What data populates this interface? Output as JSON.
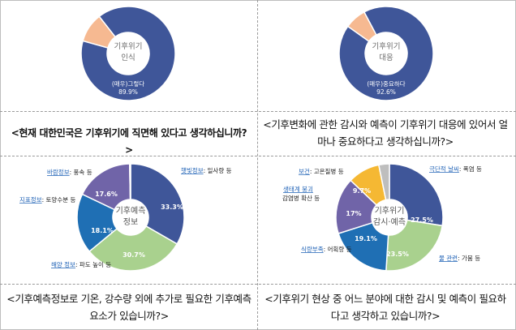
{
  "colors": {
    "blue": "#3F5699",
    "peach": "#F6B991",
    "green": "#A9D18E",
    "teal": "#1F6FB4",
    "purple": "#7064A8",
    "gray": "#BEBEBE",
    "yellow": "#F5B833",
    "red": "#E11B1B",
    "label_blue": "#1F62B6"
  },
  "questions": {
    "q1": "<현재 대한민국은 기후위기에 직면해 있다고 생각하십니까?>",
    "q2": "<기후변화에 관한 감시와 예측이 기후위기 대응에 있어서 얼마나 중요하다고 생각하십니까?>",
    "q3": "<기후예측정보로 기온, 강수량 외에 추가로 필요한 기후예측 요소가 있습니까?>",
    "q4": "<기후위기 현상 중 어느 분야에 대한 감시 및 예측이 필요하다고 생각하고 있습니까?>"
  },
  "chart_data": [
    {
      "type": "pie",
      "center_label": [
        "기후위기",
        "인식"
      ],
      "slices": [
        {
          "label": "(매우)그렇다",
          "value": 89.9,
          "value_label": "89.9%",
          "color": "#3F5699"
        },
        {
          "label": "",
          "value": 10.1,
          "color": "#F6B991"
        }
      ]
    },
    {
      "type": "pie",
      "center_label": [
        "기후위기",
        "대응"
      ],
      "slices": [
        {
          "label": "(매우)중요하다",
          "value": 92.6,
          "value_label": "92.6%",
          "color": "#3F5699"
        },
        {
          "label": "",
          "value": 7.4,
          "color": "#F6B991"
        }
      ]
    },
    {
      "type": "pie",
      "center_label": [
        "기후예측",
        "정보"
      ],
      "slices": [
        {
          "label": "햇빛정보",
          "detail": ": 일사량 등",
          "value": 33.3,
          "value_label": "33.3%",
          "color": "#3F5699"
        },
        {
          "label": "해양 정보",
          "detail": ": 파도 높이 등",
          "value": 30.7,
          "value_label": "30.7%",
          "color": "#A9D18E"
        },
        {
          "label": "지표정보",
          "detail": ": 토양수분 등",
          "value": 18.1,
          "value_label": "18.1%",
          "color": "#1F6FB4"
        },
        {
          "label": "바람정보",
          "detail": ": 풍속 등",
          "value": 17.6,
          "value_label": "17.6%",
          "color": "#7064A8"
        },
        {
          "label": "",
          "value": 0.3,
          "color": "#BEBEBE"
        }
      ]
    },
    {
      "type": "pie",
      "center_label": [
        "기후위기",
        "감시·예측"
      ],
      "slices": [
        {
          "label": "극단적 날씨",
          "detail": ": 폭염 등",
          "value": 27.5,
          "value_label": "27.5%",
          "color": "#3F5699"
        },
        {
          "label": "물 관련",
          "detail": ": 가뭄 등",
          "value": 23.5,
          "value_label": "23.5%",
          "color": "#A9D18E"
        },
        {
          "label": "식량부족",
          "detail": ": 어획량 등",
          "value": 19.1,
          "value_label": "19.1%",
          "color": "#1F6FB4"
        },
        {
          "label": "생태계 붕괴",
          "detail": ": 감염병 확산 등",
          "value": 17.0,
          "value_label": "17%",
          "color": "#7064A8"
        },
        {
          "label": "보건",
          "detail": ": 고온질병 등",
          "value": 9.7,
          "value_label": "9.7%",
          "color": "#F5B833"
        },
        {
          "label": "",
          "value": 3.2,
          "color": "#BEBEBE"
        }
      ]
    }
  ]
}
